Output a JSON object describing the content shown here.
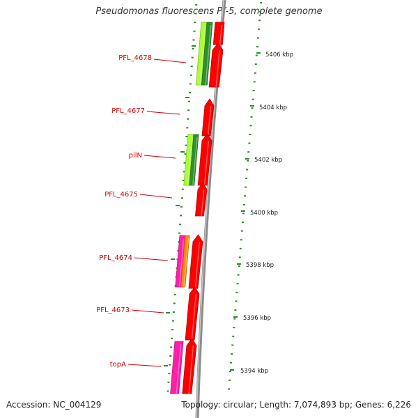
{
  "title": "Pseudomonas fluorescens Pf-5, complete genome",
  "accession": "Accession: NC_004129",
  "summary": "Topology: circular; Length: 7,074,893 bp; Genes: 6,226",
  "colors": {
    "red": "#ff0000",
    "green": "#2f8f2f",
    "lime": "#aaff33",
    "magenta": "#ff1fa8",
    "orange": "#ff8c00",
    "backbone": "#888888",
    "label": "#cc0000",
    "tick": "#2a8a2a"
  },
  "gene_labels": [
    "PFL_4678",
    "PFL_4677",
    "pilN",
    "PFL_4675",
    "PFL_4674",
    "PFL_4673",
    "topA"
  ],
  "scale_labels": [
    "5406 kbp",
    "5404 kbp",
    "5402 kbp",
    "5400 kbp",
    "5398 kbp",
    "5396 kbp",
    "5394 kbp"
  ]
}
